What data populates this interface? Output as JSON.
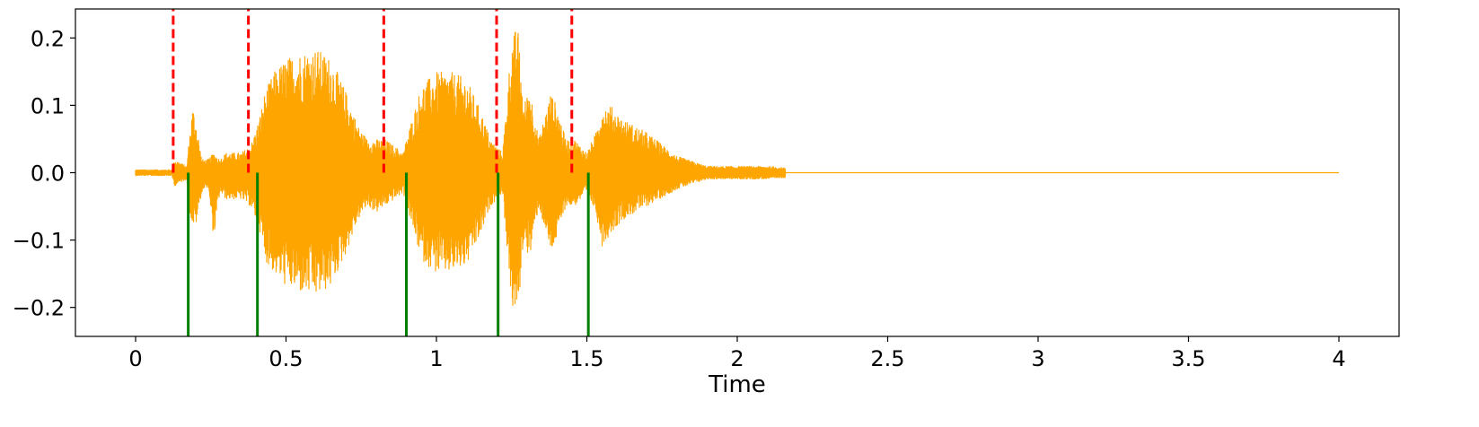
{
  "chart_data": {
    "type": "line",
    "title": "",
    "xlabel": "Time",
    "ylabel": "",
    "xlim": [
      -0.2,
      4.2
    ],
    "ylim": [
      -0.243,
      0.243
    ],
    "x_ticks": [
      0,
      0.5,
      1,
      1.5,
      2,
      2.5,
      3,
      3.5,
      4
    ],
    "x_tick_labels": [
      "0",
      "0.5",
      "1",
      "1.5",
      "2",
      "2.5",
      "3",
      "3.5",
      "4"
    ],
    "y_ticks": [
      0.2,
      0.1,
      0.0,
      -0.1,
      -0.2
    ],
    "y_tick_labels": [
      "0.2",
      "0.1",
      "0.0",
      "−0.1",
      "−0.2"
    ],
    "grid": false,
    "legend": "none",
    "waveform": {
      "color": "#FFA500",
      "duration": 4.0,
      "active_until": 2.16,
      "envelope": {
        "t": [
          0.0,
          0.12,
          0.13,
          0.17,
          0.18,
          0.19,
          0.2,
          0.22,
          0.24,
          0.26,
          0.28,
          0.3,
          0.35,
          0.38,
          0.39,
          0.41,
          0.43,
          0.46,
          0.5,
          0.55,
          0.6,
          0.65,
          0.7,
          0.74,
          0.77,
          0.8,
          0.83,
          0.86,
          0.89,
          0.9,
          0.95,
          1.0,
          1.05,
          1.1,
          1.15,
          1.18,
          1.2,
          1.22,
          1.25,
          1.27,
          1.29,
          1.31,
          1.34,
          1.38,
          1.4,
          1.43,
          1.46,
          1.5,
          1.53,
          1.55,
          1.58,
          1.62,
          1.7,
          1.8,
          1.9,
          2.0,
          2.1,
          2.16
        ],
        "top": [
          0.005,
          0.005,
          0.02,
          0.01,
          0.06,
          0.1,
          0.08,
          0.02,
          0.02,
          0.03,
          0.02,
          0.03,
          0.03,
          0.04,
          0.05,
          0.08,
          0.12,
          0.15,
          0.17,
          0.18,
          0.185,
          0.17,
          0.12,
          0.07,
          0.05,
          0.05,
          0.05,
          0.04,
          0.03,
          0.05,
          0.13,
          0.15,
          0.15,
          0.14,
          0.09,
          0.05,
          0.04,
          0.03,
          0.2,
          0.22,
          0.1,
          0.13,
          0.05,
          0.12,
          0.1,
          0.05,
          0.05,
          0.03,
          0.06,
          0.1,
          0.1,
          0.08,
          0.06,
          0.025,
          0.01,
          0.01,
          0.01,
          0.008
        ],
        "bottom": [
          -0.005,
          -0.005,
          -0.02,
          -0.01,
          -0.06,
          -0.08,
          -0.08,
          -0.03,
          -0.02,
          -0.1,
          -0.03,
          -0.04,
          -0.04,
          -0.05,
          -0.06,
          -0.08,
          -0.13,
          -0.15,
          -0.17,
          -0.18,
          -0.185,
          -0.17,
          -0.12,
          -0.07,
          -0.05,
          -0.06,
          -0.05,
          -0.04,
          -0.03,
          -0.05,
          -0.13,
          -0.15,
          -0.15,
          -0.14,
          -0.09,
          -0.05,
          -0.04,
          -0.03,
          -0.2,
          -0.22,
          -0.1,
          -0.13,
          -0.05,
          -0.12,
          -0.1,
          -0.05,
          -0.05,
          -0.03,
          -0.06,
          -0.11,
          -0.09,
          -0.07,
          -0.05,
          -0.025,
          -0.01,
          -0.01,
          -0.01,
          -0.008
        ]
      }
    },
    "markers": {
      "red_dashed": {
        "color": "#FF0000",
        "style": "dashed",
        "x": [
          0.125,
          0.375,
          0.825,
          1.2,
          1.45
        ],
        "y_from": 0.0,
        "y_to": "top"
      },
      "green_solid": {
        "color": "#008000",
        "style": "solid",
        "x": [
          0.175,
          0.405,
          0.9,
          1.205,
          1.505
        ],
        "y_from": 0.0,
        "y_to": "bottom"
      }
    }
  }
}
